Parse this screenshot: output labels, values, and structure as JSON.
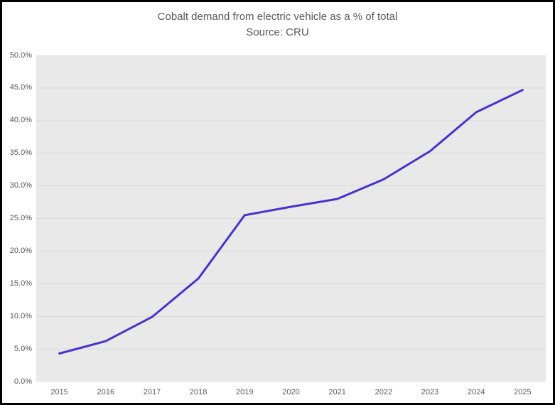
{
  "figure": {
    "title": "Cobalt demand from electric vehicle as a % of total",
    "subtitle": "Source: CRU"
  },
  "chart_data": {
    "type": "line",
    "title": "Cobalt demand from electric vehicle as a % of total",
    "subtitle": "Source: CRU",
    "xlabel": "",
    "ylabel": "",
    "categories": [
      "2015",
      "2016",
      "2017",
      "2018",
      "2019",
      "2020",
      "2021",
      "2022",
      "2023",
      "2024",
      "2025"
    ],
    "series": [
      {
        "name": "Cobalt demand from electric vehicles as % of total",
        "values": [
          4.3,
          6.2,
          9.9,
          15.8,
          25.5,
          26.8,
          28.0,
          31.0,
          35.3,
          41.3,
          44.7
        ]
      }
    ],
    "ylim": [
      0,
      50
    ],
    "ytick_step": 5,
    "ytick_labels": [
      "0.0%",
      "5.0%",
      "10.0%",
      "15.0%",
      "20.0%",
      "25.0%",
      "30.0%",
      "35.0%",
      "40.0%",
      "45.0%",
      "50.0%"
    ],
    "grid": true,
    "legend": false,
    "category_axis_mode": "between-ticks",
    "colors": {
      "line": "#4733cb",
      "plot_background": "#e9e9e9",
      "gridline": "#d9d9d9",
      "axis_text": "#595959",
      "title_text": "#595959",
      "figure_border": "#000000"
    }
  }
}
